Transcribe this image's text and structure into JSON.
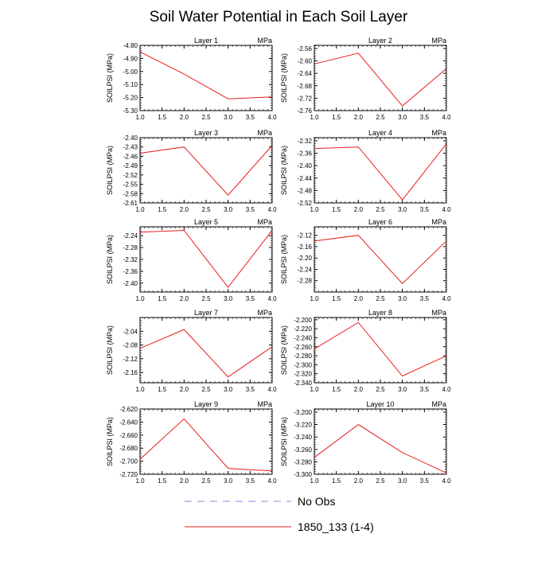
{
  "chart_data": {
    "type": "line",
    "title": "Soil Water Potential in Each Soil Layer",
    "legend": {
      "placement": "bottom",
      "entries": [
        {
          "label": "No Obs",
          "color": "#8a8ae0",
          "style": "dashed"
        },
        {
          "label": "1850_133 (1-4)",
          "color": "#e81c1c",
          "style": "solid"
        }
      ]
    },
    "x": [
      1,
      2,
      3,
      4
    ],
    "xlim": [
      1.0,
      4.0
    ],
    "xticks": [
      "1.0",
      "1.5",
      "2.0",
      "2.5",
      "3.0",
      "3.5",
      "4.0"
    ],
    "grid": false,
    "panels": [
      {
        "title": "Layer 1",
        "unit": "MPa",
        "ylabel": "SOILPSI  (MPa)",
        "ylim": [
          -5.3,
          -4.8
        ],
        "yticks": [
          "-4.80",
          "-4.90",
          "-5.00",
          "-5.10",
          "-5.20",
          "-5.30"
        ],
        "series": [
          {
            "name": "1850_133 (1-4)",
            "values": [
              -4.85,
              -5.02,
              -5.21,
              -5.195
            ]
          }
        ]
      },
      {
        "title": "Layer 2",
        "unit": "MPa",
        "ylabel": "SOILPSI  (MPa)",
        "ylim": [
          -2.76,
          -2.55
        ],
        "yticks": [
          "-2.56",
          "-2.60",
          "-2.64",
          "-2.68",
          "-2.72",
          "-2.76"
        ],
        "series": [
          {
            "name": "1850_133 (1-4)",
            "values": [
              -2.61,
              -2.575,
              -2.745,
              -2.625
            ]
          }
        ]
      },
      {
        "title": "Layer 3",
        "unit": "MPa",
        "ylabel": "SOILPSI  (MPa)",
        "ylim": [
          -2.61,
          -2.4
        ],
        "yticks": [
          "-2.40",
          "-2.43",
          "-2.46",
          "-2.49",
          "-2.52",
          "-2.55",
          "-2.58",
          "-2.61"
        ],
        "series": [
          {
            "name": "1850_133 (1-4)",
            "values": [
              -2.45,
              -2.43,
              -2.585,
              -2.425
            ]
          }
        ]
      },
      {
        "title": "Layer 4",
        "unit": "MPa",
        "ylabel": "SOILPSI  (MPa)",
        "ylim": [
          -2.52,
          -2.31
        ],
        "yticks": [
          "-2.32",
          "-2.36",
          "-2.40",
          "-2.44",
          "-2.48",
          "-2.52"
        ],
        "series": [
          {
            "name": "1850_133 (1-4)",
            "values": [
              -2.345,
              -2.34,
              -2.51,
              -2.33
            ]
          }
        ]
      },
      {
        "title": "Layer 5",
        "unit": "MPa",
        "ylabel": "SOILPSI  (MPa)",
        "ylim": [
          -2.43,
          -2.21
        ],
        "yticks": [
          "-2.24",
          "-2.28",
          "-2.32",
          "-2.36",
          "-2.40"
        ],
        "series": [
          {
            "name": "1850_133 (1-4)",
            "values": [
              -2.228,
              -2.222,
              -2.414,
              -2.222
            ]
          }
        ]
      },
      {
        "title": "Layer 6",
        "unit": "MPa",
        "ylabel": "SOILPSI  (MPa)",
        "ylim": [
          -2.32,
          -2.09
        ],
        "yticks": [
          "-2.12",
          "-2.16",
          "-2.20",
          "-2.24",
          "-2.28"
        ],
        "series": [
          {
            "name": "1850_133 (1-4)",
            "values": [
              -2.14,
              -2.12,
              -2.29,
              -2.14
            ]
          }
        ]
      },
      {
        "title": "Layer 7",
        "unit": "MPa",
        "ylabel": "SOILPSI  (MPa)",
        "ylim": [
          -2.19,
          -2.0
        ],
        "yticks": [
          "-2.04",
          "-2.08",
          "-2.12",
          "-2.16"
        ],
        "series": [
          {
            "name": "1850_133 (1-4)",
            "values": [
              -2.09,
              -2.035,
              -2.173,
              -2.085
            ]
          }
        ]
      },
      {
        "title": "Layer 8",
        "unit": "MPa",
        "ylabel": "SOILPSI  (MPa)",
        "ylim": [
          -2.34,
          -2.195
        ],
        "yticks": [
          "-2.200",
          "-2.220",
          "-2.240",
          "-2.260",
          "-2.280",
          "-2.300",
          "-2.320",
          "-2.340"
        ],
        "series": [
          {
            "name": "1850_133 (1-4)",
            "values": [
              -2.265,
              -2.206,
              -2.325,
              -2.28
            ]
          }
        ]
      },
      {
        "title": "Layer 9",
        "unit": "MPa",
        "ylabel": "SOILPSI  (MPa)",
        "ylim": [
          -2.72,
          -2.62
        ],
        "yticks": [
          "-2.620",
          "-2.640",
          "-2.660",
          "-2.680",
          "-2.700",
          "-2.720"
        ],
        "series": [
          {
            "name": "1850_133 (1-4)",
            "values": [
              -2.697,
              -2.635,
              -2.711,
              -2.715
            ]
          }
        ]
      },
      {
        "title": "Layer 10",
        "unit": "MPa",
        "ylabel": "SOILPSI  (MPa)",
        "ylim": [
          -3.3,
          -3.195
        ],
        "yticks": [
          "-3.200",
          "-3.220",
          "-3.240",
          "-3.260",
          "-3.280",
          "-3.300"
        ],
        "series": [
          {
            "name": "1850_133 (1-4)",
            "values": [
              -3.273,
              -3.22,
              -3.265,
              -3.298
            ]
          }
        ]
      }
    ]
  }
}
